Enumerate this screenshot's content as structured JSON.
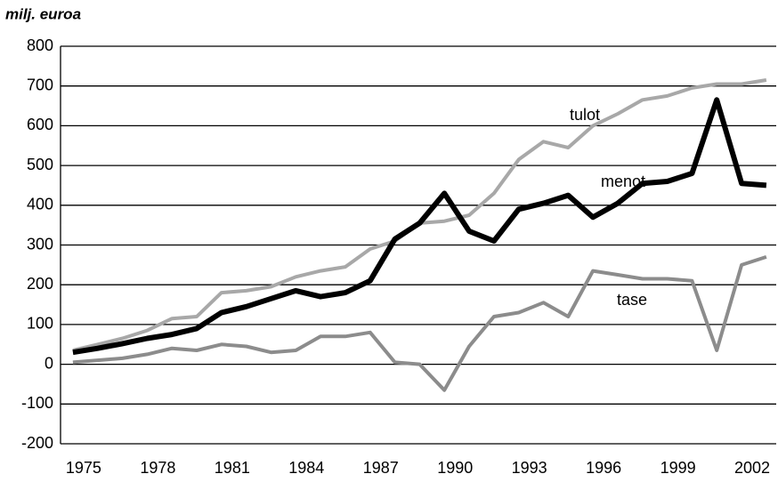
{
  "chart_data": {
    "type": "line",
    "y_label": "milj. euroa",
    "x": [
      1975,
      1976,
      1977,
      1978,
      1979,
      1980,
      1981,
      1982,
      1983,
      1984,
      1985,
      1986,
      1987,
      1988,
      1989,
      1990,
      1991,
      1992,
      1993,
      1994,
      1995,
      1996,
      1997,
      1998,
      1999,
      2000,
      2001,
      2002,
      2003
    ],
    "series": [
      {
        "name": "tulot",
        "color": "#a8a8a8",
        "values": [
          35,
          50,
          65,
          85,
          115,
          120,
          180,
          185,
          195,
          220,
          235,
          245,
          290,
          310,
          355,
          360,
          375,
          430,
          515,
          560,
          545,
          600,
          630,
          665,
          675,
          695,
          705,
          705,
          715
        ]
      },
      {
        "name": "menot",
        "color": "#000000",
        "values": [
          30,
          40,
          52,
          65,
          75,
          90,
          130,
          145,
          165,
          185,
          170,
          180,
          210,
          315,
          355,
          430,
          335,
          310,
          390,
          405,
          425,
          370,
          405,
          455,
          460,
          480,
          665,
          455,
          450
        ]
      },
      {
        "name": "tase",
        "color": "#8c8c8c",
        "values": [
          5,
          10,
          15,
          25,
          40,
          35,
          50,
          45,
          30,
          35,
          70,
          70,
          80,
          5,
          0,
          -65,
          45,
          120,
          130,
          155,
          120,
          235,
          225,
          215,
          215,
          210,
          35,
          250,
          270
        ]
      }
    ],
    "xlim": [
      1974.5,
      2003.4
    ],
    "xticks": [
      1975,
      1978,
      1981,
      1984,
      1987,
      1990,
      1993,
      1996,
      1999,
      2002
    ],
    "ylim": [
      -200,
      800
    ],
    "yticks": [
      -200,
      -100,
      0,
      100,
      200,
      300,
      400,
      500,
      600,
      700,
      800
    ],
    "grid": true
  }
}
